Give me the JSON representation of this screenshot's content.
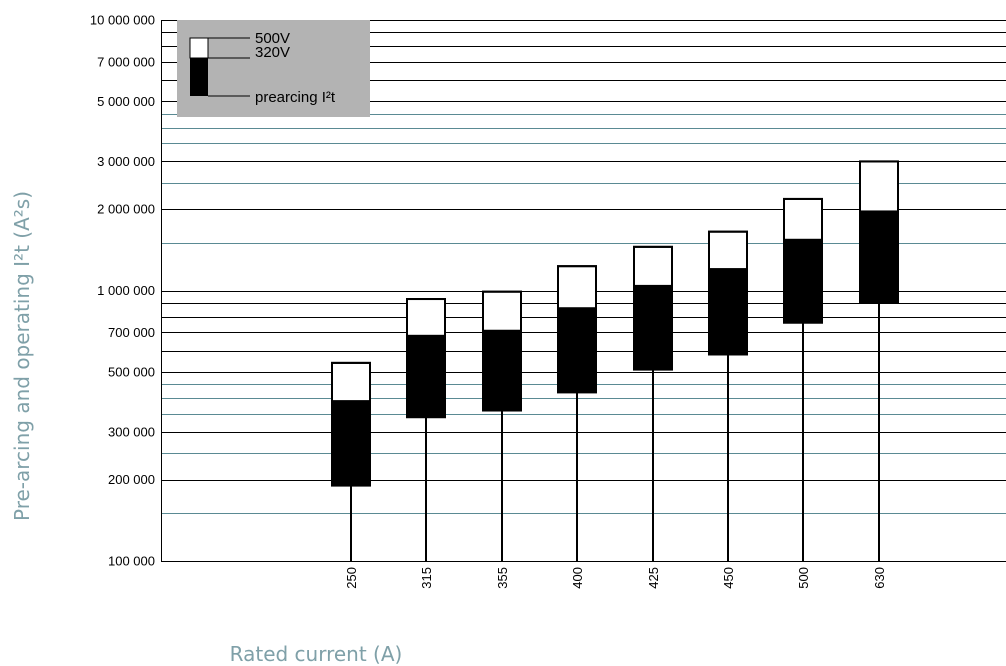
{
  "chart_data": {
    "type": "bar",
    "title": "",
    "xlabel": "Rated current (A)",
    "ylabel": "Pre-arcing and operating I²t (A²s)",
    "y_scale": "log",
    "ylim": [
      100000,
      10000000
    ],
    "grid": true,
    "legend_position": "top-left",
    "y_tick_values": [
      100000,
      200000,
      300000,
      500000,
      700000,
      1000000,
      2000000,
      3000000,
      5000000,
      7000000,
      10000000
    ],
    "y_tick_labels": [
      "100 000",
      "200 000",
      "300 000",
      "500 000",
      "700 000",
      "1 000 000",
      "2 000 000",
      "3 000 000",
      "5 000 000",
      "7 000 000",
      "10 000 000"
    ],
    "black_grid_values": [
      100000,
      200000,
      300000,
      500000,
      600000,
      700000,
      800000,
      900000,
      1000000,
      2000000,
      3000000,
      5000000,
      6000000,
      7000000,
      8000000,
      9000000,
      10000000
    ],
    "teal_grid_values": [
      150000,
      250000,
      350000,
      400000,
      450000,
      1500000,
      2500000,
      3500000,
      4000000,
      4500000
    ],
    "categories": [
      "250",
      "315",
      "355",
      "400",
      "425",
      "450",
      "500",
      "630"
    ],
    "series": [
      {
        "name": "prearcing I²t",
        "values": [
          190000,
          340000,
          360000,
          420000,
          510000,
          580000,
          760000,
          900000
        ]
      },
      {
        "name": "320V",
        "values": [
          390000,
          680000,
          710000,
          860000,
          1040000,
          1200000,
          1540000,
          1960000
        ]
      },
      {
        "name": "500V",
        "values": [
          540000,
          930000,
          990000,
          1230000,
          1450000,
          1650000,
          2180000,
          3000000
        ]
      }
    ],
    "legend": {
      "v500": "500V",
      "v320": "320V",
      "prearcing": "prearcing I²t"
    },
    "colors": {
      "prearcing": "#000000",
      "v320": "#000000",
      "v500": "#ffffff",
      "legend_bg": "#b3b3b3",
      "grid_teal": "#5a8a93",
      "axis_title": "#7fa0a8"
    }
  }
}
